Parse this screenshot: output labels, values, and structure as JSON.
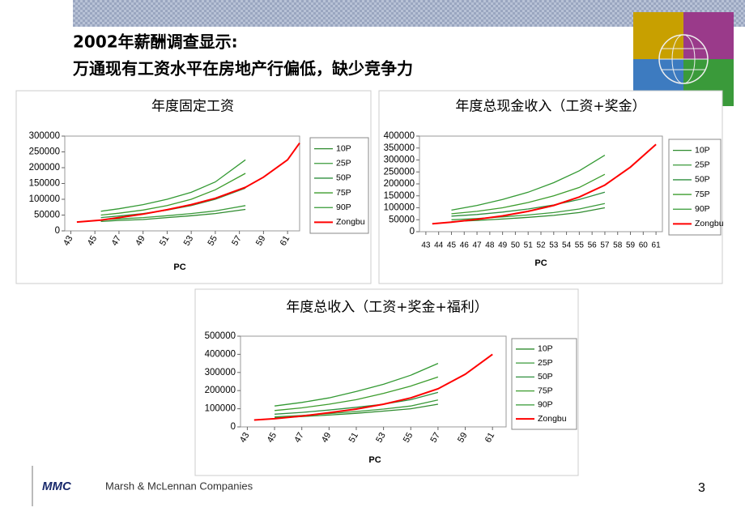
{
  "header": {
    "title_lines": [
      "2002年薪酬调查显示:",
      "万通现有工资水平在房地产行偏低，缺少竞争力"
    ]
  },
  "footer": {
    "logo": "MMC",
    "company": "Marsh & McLennan Companies",
    "page": "3"
  },
  "chart_data": [
    {
      "type": "line",
      "title": "年度固定工资",
      "x_label": "PC",
      "x": [
        43.5,
        45.5,
        47,
        49,
        51,
        53,
        55,
        57.5,
        59,
        61,
        62
      ],
      "xlim": [
        42.5,
        62
      ],
      "xticks": [
        43,
        45,
        47,
        49,
        51,
        53,
        55,
        57,
        59,
        61
      ],
      "ylim": [
        0,
        300000
      ],
      "yticks": [
        0,
        50000,
        100000,
        150000,
        200000,
        250000,
        300000
      ],
      "series": [
        {
          "name": "10P",
          "color": "#2e8b2e",
          "values": [
            null,
            30000,
            33000,
            36000,
            42000,
            48000,
            55000,
            68000,
            null,
            null,
            null
          ]
        },
        {
          "name": "25P",
          "color": "#3a9a3a",
          "values": [
            null,
            35000,
            38000,
            42000,
            48000,
            55000,
            63000,
            80000,
            null,
            null,
            null
          ]
        },
        {
          "name": "50P",
          "color": "#2f8f3f",
          "values": [
            null,
            42000,
            47000,
            55000,
            66000,
            80000,
            100000,
            135000,
            null,
            null,
            null
          ]
        },
        {
          "name": "75P",
          "color": "#3c9c2c",
          "values": [
            null,
            50000,
            56000,
            66000,
            80000,
            100000,
            130000,
            182000,
            null,
            null,
            null
          ]
        },
        {
          "name": "90P",
          "color": "#339933",
          "values": [
            null,
            62000,
            70000,
            83000,
            100000,
            122000,
            155000,
            225000,
            null,
            null,
            null
          ]
        },
        {
          "name": "Zongbu",
          "color": "#ff0000",
          "values": [
            28000,
            34000,
            42000,
            53000,
            67000,
            83000,
            103000,
            138000,
            170000,
            225000,
            278000
          ]
        }
      ]
    },
    {
      "type": "line",
      "title": "年度总现金收入（工资+奖金）",
      "x_label": "PC",
      "x": [
        43.5,
        45,
        47,
        49,
        51,
        53,
        55,
        57,
        59,
        61
      ],
      "xlim": [
        42.5,
        61.5
      ],
      "xticks": [
        43,
        44,
        45,
        46,
        47,
        48,
        49,
        50,
        51,
        52,
        53,
        54,
        55,
        56,
        57,
        58,
        59,
        60,
        61
      ],
      "ylim": [
        0,
        400000
      ],
      "yticks": [
        0,
        50000,
        100000,
        150000,
        200000,
        250000,
        300000,
        350000,
        400000
      ],
      "series": [
        {
          "name": "10P",
          "color": "#2e8b2e",
          "values": [
            null,
            42000,
            47000,
            53000,
            60000,
            68000,
            80000,
            100000,
            null,
            null
          ]
        },
        {
          "name": "25P",
          "color": "#3a9a3a",
          "values": [
            null,
            50000,
            55000,
            62000,
            70000,
            80000,
            95000,
            118000,
            null,
            null
          ]
        },
        {
          "name": "50P",
          "color": "#2f8f3f",
          "values": [
            null,
            65000,
            72000,
            82000,
            95000,
            112000,
            135000,
            165000,
            null,
            null
          ]
        },
        {
          "name": "75P",
          "color": "#3c9c2c",
          "values": [
            null,
            75000,
            85000,
            100000,
            122000,
            150000,
            185000,
            240000,
            null,
            null
          ]
        },
        {
          "name": "90P",
          "color": "#339933",
          "values": [
            null,
            90000,
            110000,
            135000,
            165000,
            205000,
            255000,
            320000,
            null,
            null
          ]
        },
        {
          "name": "Zongbu",
          "color": "#ff0000",
          "values": [
            33000,
            40000,
            52000,
            66000,
            85000,
            110000,
            145000,
            195000,
            270000,
            365000
          ]
        }
      ]
    },
    {
      "type": "line",
      "title": "年度总收入（工资+奖金+福利）",
      "x_label": "PC",
      "x": [
        43.5,
        45,
        47,
        49,
        51,
        53,
        55,
        57,
        59,
        61
      ],
      "xlim": [
        42.5,
        62
      ],
      "xticks": [
        43,
        45,
        47,
        49,
        51,
        53,
        55,
        57,
        59,
        61
      ],
      "ylim": [
        0,
        500000
      ],
      "yticks": [
        0,
        100000,
        200000,
        300000,
        400000,
        500000
      ],
      "series": [
        {
          "name": "10P",
          "color": "#2e8b2e",
          "values": [
            null,
            50000,
            57000,
            65000,
            75000,
            87000,
            100000,
            125000,
            null,
            null
          ]
        },
        {
          "name": "25P",
          "color": "#3a9a3a",
          "values": [
            null,
            55000,
            63000,
            73000,
            85000,
            98000,
            115000,
            148000,
            null,
            null
          ]
        },
        {
          "name": "50P",
          "color": "#2f8f3f",
          "values": [
            null,
            70000,
            80000,
            93000,
            108000,
            125000,
            150000,
            190000,
            null,
            null
          ]
        },
        {
          "name": "75P",
          "color": "#3c9c2c",
          "values": [
            null,
            90000,
            105000,
            125000,
            150000,
            185000,
            225000,
            275000,
            null,
            null
          ]
        },
        {
          "name": "90P",
          "color": "#339933",
          "values": [
            null,
            115000,
            135000,
            160000,
            195000,
            235000,
            285000,
            350000,
            null,
            null
          ]
        },
        {
          "name": "Zongbu",
          "color": "#ff0000",
          "values": [
            38000,
            45000,
            60000,
            78000,
            98000,
            125000,
            160000,
            210000,
            290000,
            400000
          ]
        }
      ]
    }
  ]
}
